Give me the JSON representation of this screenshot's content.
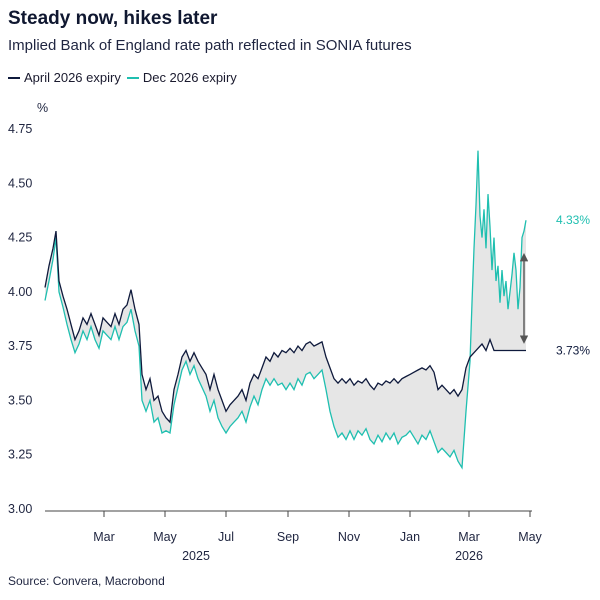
{
  "title": "Steady now, hikes later",
  "subtitle": "Implied Bank of England rate path reflected in SONIA futures",
  "source": "Source: Convera, Macrobond",
  "colors": {
    "april": "#0f1a3c",
    "dec": "#1fbfb0",
    "fill": "#e6e6e6",
    "arrow": "#555555"
  },
  "chart_data": {
    "type": "line",
    "ylabel": "%",
    "ylim": [
      3.0,
      4.75
    ],
    "y_ticks": [
      "3.00",
      "3.25",
      "3.50",
      "3.75",
      "4.00",
      "4.25",
      "4.50",
      "4.75"
    ],
    "y_tick_values": [
      3.0,
      3.25,
      3.5,
      3.75,
      4.0,
      4.25,
      4.5,
      4.75
    ],
    "x_ticks": [
      "Mar",
      "May",
      "Jul",
      "Sep",
      "Nov",
      "Jan",
      "Mar",
      "May"
    ],
    "x_tick_dates": [
      "2025-03-01",
      "2025-05-01",
      "2025-07-01",
      "2025-09-01",
      "2025-11-01",
      "2026-01-01",
      "2026-03-01",
      "2026-05-01"
    ],
    "x_year_labels": [
      "2025",
      "2026"
    ],
    "x_year_dates": [
      "2025-06-01",
      "2026-03-01"
    ],
    "x_range": [
      "2025-01-01",
      "2026-05-01"
    ],
    "legend_placement": "top-left",
    "series": [
      {
        "name": "April 2026 expiry",
        "points": [
          [
            "2025-01-01",
            4.02
          ],
          [
            "2025-01-05",
            4.12
          ],
          [
            "2025-01-09",
            4.2
          ],
          [
            "2025-01-12",
            4.28
          ],
          [
            "2025-01-15",
            4.05
          ],
          [
            "2025-01-19",
            3.98
          ],
          [
            "2025-01-23",
            3.92
          ],
          [
            "2025-01-27",
            3.85
          ],
          [
            "2025-01-31",
            3.78
          ],
          [
            "2025-02-04",
            3.82
          ],
          [
            "2025-02-08",
            3.88
          ],
          [
            "2025-02-12",
            3.85
          ],
          [
            "2025-02-16",
            3.9
          ],
          [
            "2025-02-20",
            3.85
          ],
          [
            "2025-02-24",
            3.8
          ],
          [
            "2025-02-28",
            3.88
          ],
          [
            "2025-03-04",
            3.86
          ],
          [
            "2025-03-08",
            3.84
          ],
          [
            "2025-03-12",
            3.9
          ],
          [
            "2025-03-16",
            3.85
          ],
          [
            "2025-03-20",
            3.92
          ],
          [
            "2025-03-24",
            3.94
          ],
          [
            "2025-03-28",
            4.01
          ],
          [
            "2025-04-01",
            3.92
          ],
          [
            "2025-04-05",
            3.85
          ],
          [
            "2025-04-08",
            3.62
          ],
          [
            "2025-04-12",
            3.55
          ],
          [
            "2025-04-16",
            3.6
          ],
          [
            "2025-04-20",
            3.5
          ],
          [
            "2025-04-24",
            3.52
          ],
          [
            "2025-04-28",
            3.45
          ],
          [
            "2025-05-02",
            3.42
          ],
          [
            "2025-05-06",
            3.4
          ],
          [
            "2025-05-10",
            3.55
          ],
          [
            "2025-05-14",
            3.62
          ],
          [
            "2025-05-18",
            3.7
          ],
          [
            "2025-05-22",
            3.73
          ],
          [
            "2025-05-26",
            3.68
          ],
          [
            "2025-05-30",
            3.72
          ],
          [
            "2025-06-03",
            3.68
          ],
          [
            "2025-06-07",
            3.65
          ],
          [
            "2025-06-11",
            3.62
          ],
          [
            "2025-06-15",
            3.55
          ],
          [
            "2025-06-19",
            3.62
          ],
          [
            "2025-06-23",
            3.55
          ],
          [
            "2025-06-27",
            3.5
          ],
          [
            "2025-07-01",
            3.45
          ],
          [
            "2025-07-05",
            3.48
          ],
          [
            "2025-07-09",
            3.5
          ],
          [
            "2025-07-13",
            3.52
          ],
          [
            "2025-07-17",
            3.55
          ],
          [
            "2025-07-21",
            3.5
          ],
          [
            "2025-07-25",
            3.58
          ],
          [
            "2025-07-29",
            3.62
          ],
          [
            "2025-08-02",
            3.6
          ],
          [
            "2025-08-06",
            3.65
          ],
          [
            "2025-08-10",
            3.7
          ],
          [
            "2025-08-14",
            3.68
          ],
          [
            "2025-08-18",
            3.72
          ],
          [
            "2025-08-22",
            3.7
          ],
          [
            "2025-08-26",
            3.73
          ],
          [
            "2025-08-30",
            3.72
          ],
          [
            "2025-09-03",
            3.74
          ],
          [
            "2025-09-07",
            3.72
          ],
          [
            "2025-09-11",
            3.75
          ],
          [
            "2025-09-15",
            3.73
          ],
          [
            "2025-09-19",
            3.76
          ],
          [
            "2025-09-23",
            3.77
          ],
          [
            "2025-09-27",
            3.75
          ],
          [
            "2025-10-01",
            3.76
          ],
          [
            "2025-10-05",
            3.77
          ],
          [
            "2025-10-09",
            3.7
          ],
          [
            "2025-10-13",
            3.65
          ],
          [
            "2025-10-17",
            3.6
          ],
          [
            "2025-10-21",
            3.58
          ],
          [
            "2025-10-25",
            3.6
          ],
          [
            "2025-10-29",
            3.58
          ],
          [
            "2025-11-02",
            3.6
          ],
          [
            "2025-11-06",
            3.57
          ],
          [
            "2025-11-10",
            3.59
          ],
          [
            "2025-11-14",
            3.58
          ],
          [
            "2025-11-18",
            3.6
          ],
          [
            "2025-11-22",
            3.57
          ],
          [
            "2025-11-26",
            3.55
          ],
          [
            "2025-11-30",
            3.58
          ],
          [
            "2025-12-04",
            3.57
          ],
          [
            "2025-12-08",
            3.59
          ],
          [
            "2025-12-12",
            3.58
          ],
          [
            "2025-12-16",
            3.6
          ],
          [
            "2025-12-20",
            3.58
          ],
          [
            "2025-12-24",
            3.6
          ],
          [
            "2025-12-28",
            3.61
          ],
          [
            "2026-01-01",
            3.62
          ],
          [
            "2026-01-05",
            3.63
          ],
          [
            "2026-01-09",
            3.64
          ],
          [
            "2026-01-13",
            3.65
          ],
          [
            "2026-01-17",
            3.64
          ],
          [
            "2026-01-21",
            3.66
          ],
          [
            "2026-01-25",
            3.63
          ],
          [
            "2026-01-29",
            3.55
          ],
          [
            "2026-02-02",
            3.57
          ],
          [
            "2026-02-06",
            3.55
          ],
          [
            "2026-02-10",
            3.53
          ],
          [
            "2026-02-14",
            3.55
          ],
          [
            "2026-02-18",
            3.52
          ],
          [
            "2026-02-22",
            3.55
          ],
          [
            "2026-02-26",
            3.65
          ],
          [
            "2026-03-02",
            3.7
          ],
          [
            "2026-03-06",
            3.72
          ],
          [
            "2026-03-10",
            3.74
          ],
          [
            "2026-03-14",
            3.76
          ],
          [
            "2026-03-18",
            3.73
          ],
          [
            "2026-03-22",
            3.78
          ],
          [
            "2026-03-26",
            3.73
          ],
          [
            "2026-03-30",
            3.73
          ],
          [
            "2026-04-03",
            3.73
          ],
          [
            "2026-04-07",
            3.73
          ],
          [
            "2026-04-11",
            3.73
          ],
          [
            "2026-04-15",
            3.73
          ],
          [
            "2026-04-19",
            3.73
          ],
          [
            "2026-04-23",
            3.73
          ],
          [
            "2026-04-27",
            3.73
          ]
        ]
      },
      {
        "name": "Dec 2026 expiry",
        "points": [
          [
            "2025-01-01",
            3.96
          ],
          [
            "2025-01-05",
            4.05
          ],
          [
            "2025-01-09",
            4.15
          ],
          [
            "2025-01-12",
            4.25
          ],
          [
            "2025-01-15",
            4.0
          ],
          [
            "2025-01-19",
            3.93
          ],
          [
            "2025-01-23",
            3.85
          ],
          [
            "2025-01-27",
            3.78
          ],
          [
            "2025-01-31",
            3.72
          ],
          [
            "2025-02-04",
            3.76
          ],
          [
            "2025-02-08",
            3.82
          ],
          [
            "2025-02-12",
            3.78
          ],
          [
            "2025-02-16",
            3.84
          ],
          [
            "2025-02-20",
            3.78
          ],
          [
            "2025-02-24",
            3.74
          ],
          [
            "2025-02-28",
            3.82
          ],
          [
            "2025-03-04",
            3.8
          ],
          [
            "2025-03-08",
            3.78
          ],
          [
            "2025-03-12",
            3.84
          ],
          [
            "2025-03-16",
            3.78
          ],
          [
            "2025-03-20",
            3.84
          ],
          [
            "2025-03-24",
            3.86
          ],
          [
            "2025-03-28",
            3.92
          ],
          [
            "2025-04-01",
            3.82
          ],
          [
            "2025-04-05",
            3.75
          ],
          [
            "2025-04-08",
            3.5
          ],
          [
            "2025-04-12",
            3.45
          ],
          [
            "2025-04-16",
            3.5
          ],
          [
            "2025-04-20",
            3.4
          ],
          [
            "2025-04-24",
            3.42
          ],
          [
            "2025-04-28",
            3.35
          ],
          [
            "2025-05-02",
            3.36
          ],
          [
            "2025-05-06",
            3.35
          ],
          [
            "2025-05-10",
            3.48
          ],
          [
            "2025-05-14",
            3.56
          ],
          [
            "2025-05-18",
            3.64
          ],
          [
            "2025-05-22",
            3.68
          ],
          [
            "2025-05-26",
            3.62
          ],
          [
            "2025-05-30",
            3.66
          ],
          [
            "2025-06-03",
            3.6
          ],
          [
            "2025-06-07",
            3.56
          ],
          [
            "2025-06-11",
            3.52
          ],
          [
            "2025-06-15",
            3.45
          ],
          [
            "2025-06-19",
            3.5
          ],
          [
            "2025-06-23",
            3.42
          ],
          [
            "2025-06-27",
            3.38
          ],
          [
            "2025-07-01",
            3.35
          ],
          [
            "2025-07-05",
            3.38
          ],
          [
            "2025-07-09",
            3.4
          ],
          [
            "2025-07-13",
            3.42
          ],
          [
            "2025-07-17",
            3.45
          ],
          [
            "2025-07-21",
            3.4
          ],
          [
            "2025-07-25",
            3.47
          ],
          [
            "2025-07-29",
            3.52
          ],
          [
            "2025-08-02",
            3.48
          ],
          [
            "2025-08-06",
            3.55
          ],
          [
            "2025-08-10",
            3.6
          ],
          [
            "2025-08-14",
            3.57
          ],
          [
            "2025-08-18",
            3.6
          ],
          [
            "2025-08-22",
            3.57
          ],
          [
            "2025-08-26",
            3.58
          ],
          [
            "2025-08-30",
            3.55
          ],
          [
            "2025-09-03",
            3.58
          ],
          [
            "2025-09-07",
            3.55
          ],
          [
            "2025-09-11",
            3.6
          ],
          [
            "2025-09-15",
            3.57
          ],
          [
            "2025-09-19",
            3.62
          ],
          [
            "2025-09-23",
            3.63
          ],
          [
            "2025-09-27",
            3.6
          ],
          [
            "2025-10-01",
            3.62
          ],
          [
            "2025-10-05",
            3.64
          ],
          [
            "2025-10-09",
            3.55
          ],
          [
            "2025-10-13",
            3.45
          ],
          [
            "2025-10-17",
            3.38
          ],
          [
            "2025-10-21",
            3.33
          ],
          [
            "2025-10-25",
            3.35
          ],
          [
            "2025-10-29",
            3.32
          ],
          [
            "2025-11-02",
            3.36
          ],
          [
            "2025-11-06",
            3.32
          ],
          [
            "2025-11-10",
            3.36
          ],
          [
            "2025-11-14",
            3.34
          ],
          [
            "2025-11-18",
            3.37
          ],
          [
            "2025-11-22",
            3.32
          ],
          [
            "2025-11-26",
            3.3
          ],
          [
            "2025-11-30",
            3.34
          ],
          [
            "2025-12-04",
            3.31
          ],
          [
            "2025-12-08",
            3.35
          ],
          [
            "2025-12-12",
            3.32
          ],
          [
            "2025-12-16",
            3.35
          ],
          [
            "2025-12-20",
            3.3
          ],
          [
            "2025-12-24",
            3.33
          ],
          [
            "2025-12-28",
            3.34
          ],
          [
            "2026-01-01",
            3.36
          ],
          [
            "2026-01-05",
            3.33
          ],
          [
            "2026-01-09",
            3.3
          ],
          [
            "2026-01-13",
            3.34
          ],
          [
            "2026-01-17",
            3.32
          ],
          [
            "2026-01-21",
            3.36
          ],
          [
            "2026-01-25",
            3.31
          ],
          [
            "2026-01-29",
            3.26
          ],
          [
            "2026-02-02",
            3.28
          ],
          [
            "2026-02-06",
            3.26
          ],
          [
            "2026-02-10",
            3.24
          ],
          [
            "2026-02-14",
            3.27
          ],
          [
            "2026-02-18",
            3.22
          ],
          [
            "2026-02-22",
            3.19
          ],
          [
            "2026-02-26",
            3.45
          ],
          [
            "2026-03-02",
            3.68
          ],
          [
            "2026-03-04",
            3.95
          ],
          [
            "2026-03-06",
            4.2
          ],
          [
            "2026-03-08",
            4.4
          ],
          [
            "2026-03-10",
            4.65
          ],
          [
            "2026-03-12",
            4.35
          ],
          [
            "2026-03-14",
            4.25
          ],
          [
            "2026-03-16",
            4.38
          ],
          [
            "2026-03-18",
            4.2
          ],
          [
            "2026-03-20",
            4.45
          ],
          [
            "2026-03-22",
            4.3
          ],
          [
            "2026-03-24",
            4.1
          ],
          [
            "2026-03-26",
            4.25
          ],
          [
            "2026-03-28",
            4.05
          ],
          [
            "2026-03-30",
            4.12
          ],
          [
            "2026-04-01",
            3.95
          ],
          [
            "2026-04-03",
            4.1
          ],
          [
            "2026-04-05",
            3.98
          ],
          [
            "2026-04-07",
            4.05
          ],
          [
            "2026-04-09",
            3.92
          ],
          [
            "2026-04-11",
            4.0
          ],
          [
            "2026-04-13",
            4.08
          ],
          [
            "2026-04-15",
            4.18
          ],
          [
            "2026-04-17",
            4.1
          ],
          [
            "2026-04-19",
            3.92
          ],
          [
            "2026-04-21",
            4.02
          ],
          [
            "2026-04-23",
            4.25
          ],
          [
            "2026-04-25",
            4.28
          ],
          [
            "2026-04-27",
            4.33
          ]
        ]
      }
    ],
    "end_labels": {
      "april": "3.73%",
      "dec": "4.33%"
    },
    "annotation": "double-headed arrow between the two series at the latest date"
  }
}
